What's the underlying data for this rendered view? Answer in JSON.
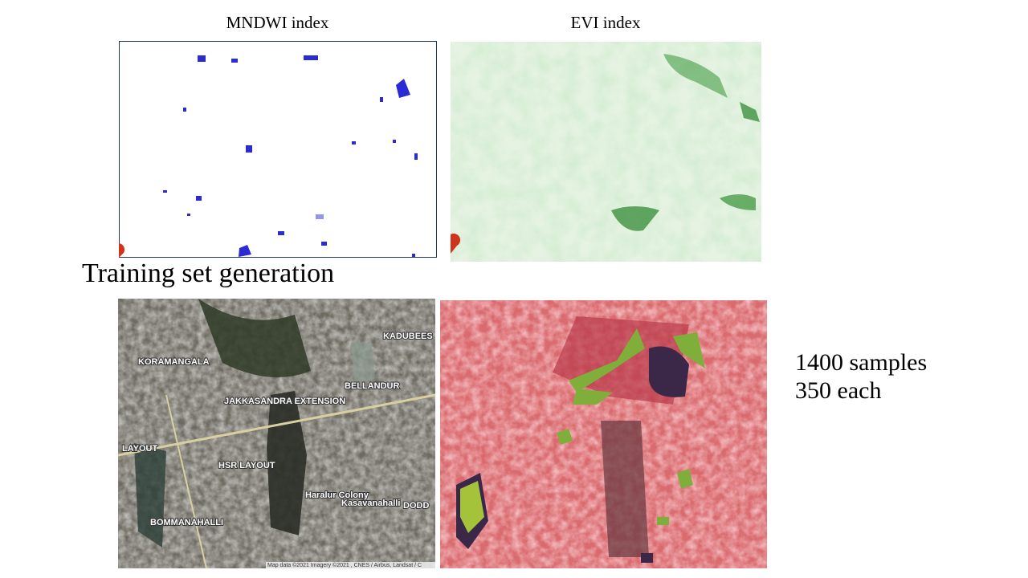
{
  "panels": [
    {
      "title": "MNDWI index"
    },
    {
      "title": "EVI index"
    }
  ],
  "section_title": "Training set generation",
  "map_labels": [
    "KADUBEES",
    "KORAMANGALA",
    "BELLANDUR",
    "JAKKASANDRA EXTENSION",
    "LAYOUT",
    "HSR LAYOUT",
    "BOMMANAHALLI",
    "Haralur Colony",
    "Kasavanahalli",
    "DODD"
  ],
  "map_credit": "Map data ©2021 Imagery ©2021 , CNES / Airbus, Landsat / C",
  "samples": {
    "total": "1400 samples",
    "per_class": "350 each"
  }
}
